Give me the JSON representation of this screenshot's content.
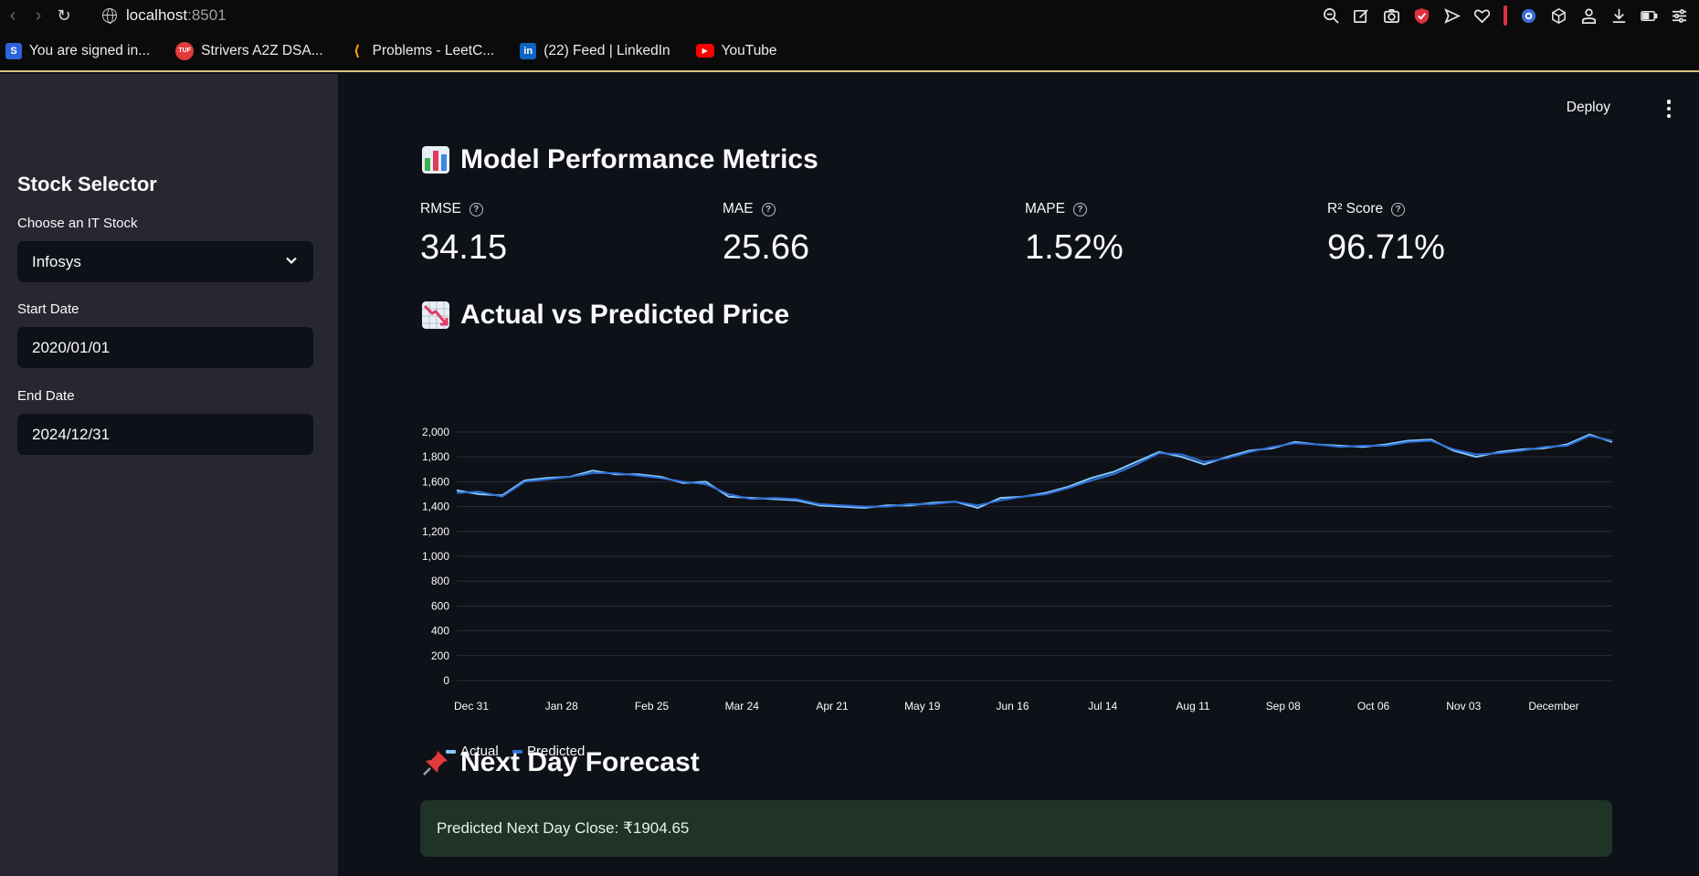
{
  "browser": {
    "url_host": "localhost",
    "url_port": ":8501",
    "bookmarks": [
      {
        "label": "You are signed in...",
        "icon": "s-logo-icon"
      },
      {
        "label": "Strivers A2Z DSA...",
        "icon": "tuf-logo-icon"
      },
      {
        "label": "Problems - LeetC...",
        "icon": "leetcode-icon"
      },
      {
        "label": "(22) Feed | LinkedIn",
        "icon": "linkedin-icon"
      },
      {
        "label": "YouTube",
        "icon": "youtube-icon"
      }
    ]
  },
  "sidebar": {
    "title": "Stock Selector",
    "stock_label": "Choose an IT Stock",
    "stock_value": "Infosys",
    "start_label": "Start Date",
    "start_value": "2020/01/01",
    "end_label": "End Date",
    "end_value": "2024/12/31"
  },
  "header": {
    "deploy_label": "Deploy"
  },
  "metrics_section": {
    "title": "Model Performance Metrics",
    "metrics": [
      {
        "label": "RMSE",
        "value": "34.15"
      },
      {
        "label": "MAE",
        "value": "25.66"
      },
      {
        "label": "MAPE",
        "value": "1.52%"
      },
      {
        "label": "R² Score",
        "value": "96.71%"
      }
    ]
  },
  "chart_section": {
    "title": "Actual vs Predicted Price"
  },
  "forecast_section": {
    "title": "Next Day Forecast",
    "message": "Predicted Next Day Close: ₹1904.65"
  },
  "colors": {
    "actual": "#83c9ff",
    "predicted": "#2f6fd6",
    "success_bg": "#1f3326",
    "sidebar_bg": "#262730",
    "main_bg": "#0e1117"
  },
  "chart_data": {
    "type": "line",
    "title": "",
    "xlabel": "",
    "ylabel": "",
    "ylim": [
      0,
      2000
    ],
    "yticks": [
      0,
      200,
      400,
      600,
      800,
      1000,
      1200,
      1400,
      1600,
      1800,
      2000
    ],
    "ytick_labels": [
      "0",
      "200",
      "400",
      "600",
      "800",
      "1,000",
      "1,200",
      "1,400",
      "1,600",
      "1,800",
      "2,000"
    ],
    "xtick_labels": [
      "Dec 31",
      "Jan 28",
      "Feb 25",
      "Mar 24",
      "Apr 21",
      "May 19",
      "Jun 16",
      "Jul 14",
      "Aug 11",
      "Sep 08",
      "Oct 06",
      "Nov 03",
      "December"
    ],
    "legend_position": "bottom-left",
    "grid": true,
    "x": [
      "Dec 31",
      "Jan 07",
      "Jan 14",
      "Jan 21",
      "Jan 28",
      "Feb 04",
      "Feb 11",
      "Feb 18",
      "Feb 25",
      "Mar 03",
      "Mar 10",
      "Mar 17",
      "Mar 24",
      "Mar 31",
      "Apr 07",
      "Apr 14",
      "Apr 21",
      "Apr 28",
      "May 05",
      "May 12",
      "May 19",
      "May 26",
      "Jun 02",
      "Jun 09",
      "Jun 16",
      "Jun 23",
      "Jun 30",
      "Jul 07",
      "Jul 14",
      "Jul 21",
      "Jul 28",
      "Aug 04",
      "Aug 11",
      "Aug 18",
      "Aug 25",
      "Sep 01",
      "Sep 08",
      "Sep 15",
      "Sep 22",
      "Sep 29",
      "Oct 06",
      "Oct 13",
      "Oct 20",
      "Oct 27",
      "Nov 03",
      "Nov 10",
      "Nov 17",
      "Nov 24",
      "Dec 01",
      "Dec 08",
      "Dec 15",
      "Dec 22"
    ],
    "series": [
      {
        "name": "Actual",
        "values": [
          1530,
          1500,
          1490,
          1610,
          1630,
          1640,
          1690,
          1660,
          1660,
          1640,
          1590,
          1600,
          1480,
          1470,
          1460,
          1450,
          1410,
          1400,
          1390,
          1410,
          1410,
          1430,
          1440,
          1390,
          1470,
          1480,
          1510,
          1560,
          1630,
          1680,
          1760,
          1840,
          1800,
          1740,
          1800,
          1850,
          1870,
          1920,
          1900,
          1890,
          1880,
          1900,
          1930,
          1940,
          1850,
          1800,
          1840,
          1860,
          1870,
          1900,
          1980,
          1920
        ]
      },
      {
        "name": "Predicted",
        "values": [
          1510,
          1520,
          1480,
          1600,
          1620,
          1640,
          1670,
          1670,
          1650,
          1630,
          1600,
          1580,
          1500,
          1460,
          1470,
          1460,
          1420,
          1410,
          1400,
          1400,
          1420,
          1420,
          1440,
          1410,
          1450,
          1480,
          1500,
          1550,
          1610,
          1660,
          1740,
          1830,
          1820,
          1760,
          1790,
          1840,
          1880,
          1910,
          1900,
          1880,
          1890,
          1890,
          1920,
          1930,
          1860,
          1820,
          1830,
          1850,
          1880,
          1890,
          1970,
          1930
        ]
      }
    ]
  }
}
